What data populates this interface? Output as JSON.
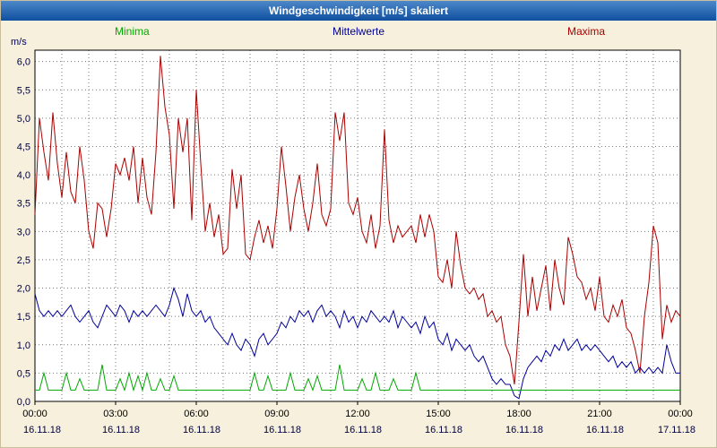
{
  "window": {
    "title": "Windgeschwindigkeit [m/s] skaliert"
  },
  "legend": [
    {
      "label": "Minima",
      "color": "#00a800"
    },
    {
      "label": "Mittelwerte",
      "color": "#000099"
    },
    {
      "label": "Maxima",
      "color": "#aa0000"
    }
  ],
  "axes": {
    "y_unit": "m/s"
  },
  "chart_data": {
    "type": "line",
    "title": "Windgeschwindigkeit [m/s] skaliert",
    "ylabel": "m/s",
    "ylim": [
      0,
      6.2
    ],
    "x_range_hours": [
      0,
      24
    ],
    "grid": "dotted, vertical every hour, horizontal every 0.5 m/s",
    "legend_position": "top",
    "yticks": [
      "0,0",
      "0,5",
      "1,0",
      "1,5",
      "2,0",
      "2,5",
      "3,0",
      "3,5",
      "4,0",
      "4,5",
      "5,0",
      "5,5",
      "6,0"
    ],
    "xticks": [
      {
        "time": "00:00",
        "date": "16.11.18"
      },
      {
        "time": "03:00",
        "date": "16.11.18"
      },
      {
        "time": "06:00",
        "date": "16.11.18"
      },
      {
        "time": "09:00",
        "date": "16.11.18"
      },
      {
        "time": "12:00",
        "date": "16.11.18"
      },
      {
        "time": "15:00",
        "date": "16.11.18"
      },
      {
        "time": "18:00",
        "date": "16.11.18"
      },
      {
        "time": "21:00",
        "date": "16.11.18"
      },
      {
        "time": "00:00",
        "date": "17.11.18"
      }
    ],
    "series": [
      {
        "name": "Maxima",
        "color": "#aa0000",
        "values": [
          3.3,
          5.0,
          4.4,
          3.9,
          5.1,
          4.2,
          3.6,
          4.4,
          3.7,
          3.5,
          4.5,
          3.9,
          3.0,
          2.7,
          3.5,
          3.4,
          2.9,
          3.4,
          4.2,
          4.0,
          4.3,
          3.9,
          4.5,
          3.5,
          4.3,
          3.6,
          3.3,
          4.4,
          6.1,
          5.2,
          4.7,
          3.4,
          5.0,
          4.4,
          5.0,
          3.2,
          5.5,
          4.2,
          3.0,
          3.5,
          2.9,
          3.3,
          2.6,
          2.7,
          4.1,
          3.4,
          4.0,
          2.6,
          2.5,
          2.9,
          3.2,
          2.8,
          3.1,
          2.7,
          3.4,
          4.5,
          3.8,
          3.0,
          3.6,
          4.0,
          3.4,
          3.0,
          3.5,
          4.2,
          3.3,
          3.1,
          3.4,
          5.1,
          4.6,
          5.1,
          3.5,
          3.3,
          3.6,
          3.0,
          2.8,
          3.3,
          2.7,
          3.1,
          4.8,
          3.2,
          2.8,
          3.1,
          2.9,
          3.0,
          3.1,
          2.8,
          3.3,
          2.9,
          3.3,
          3.0,
          2.2,
          2.1,
          2.5,
          2.0,
          3.0,
          2.4,
          2.0,
          1.9,
          2.0,
          1.8,
          1.9,
          1.5,
          1.6,
          1.4,
          1.5,
          1.0,
          0.8,
          0.3,
          1.4,
          2.6,
          1.5,
          2.2,
          1.6,
          2.0,
          2.4,
          1.6,
          2.5,
          2.0,
          1.7,
          2.9,
          2.6,
          2.2,
          2.1,
          1.8,
          2.0,
          1.6,
          2.2,
          1.5,
          1.4,
          1.7,
          1.5,
          1.8,
          1.3,
          1.2,
          0.9,
          0.5,
          1.5,
          2.1,
          3.1,
          2.8,
          1.1,
          1.7,
          1.4,
          1.6,
          1.5
        ]
      },
      {
        "name": "Mittelwerte",
        "color": "#000099",
        "values": [
          1.9,
          1.6,
          1.5,
          1.6,
          1.5,
          1.6,
          1.5,
          1.6,
          1.7,
          1.5,
          1.4,
          1.5,
          1.6,
          1.4,
          1.3,
          1.5,
          1.7,
          1.6,
          1.5,
          1.7,
          1.6,
          1.4,
          1.6,
          1.5,
          1.6,
          1.5,
          1.6,
          1.7,
          1.6,
          1.5,
          1.7,
          2.0,
          1.8,
          1.5,
          1.9,
          1.6,
          1.5,
          1.6,
          1.4,
          1.5,
          1.3,
          1.2,
          1.1,
          1.0,
          1.2,
          1.0,
          0.9,
          1.1,
          1.0,
          0.8,
          1.1,
          1.2,
          1.0,
          1.1,
          1.2,
          1.4,
          1.3,
          1.5,
          1.4,
          1.6,
          1.5,
          1.6,
          1.4,
          1.6,
          1.7,
          1.5,
          1.6,
          1.5,
          1.3,
          1.6,
          1.4,
          1.5,
          1.3,
          1.5,
          1.4,
          1.6,
          1.5,
          1.4,
          1.5,
          1.4,
          1.6,
          1.3,
          1.5,
          1.4,
          1.3,
          1.4,
          1.2,
          1.5,
          1.3,
          1.4,
          1.1,
          1.0,
          1.2,
          0.9,
          1.1,
          1.0,
          0.9,
          1.0,
          0.8,
          0.7,
          0.8,
          0.6,
          0.4,
          0.3,
          0.4,
          0.3,
          0.3,
          0.1,
          0.05,
          0.4,
          0.6,
          0.7,
          0.8,
          0.7,
          0.9,
          0.8,
          1.0,
          0.9,
          1.1,
          0.9,
          1.0,
          1.1,
          0.9,
          1.0,
          0.9,
          1.0,
          0.9,
          0.8,
          0.7,
          0.8,
          0.6,
          0.7,
          0.6,
          0.7,
          0.5,
          0.6,
          0.5,
          0.6,
          0.5,
          0.6,
          0.5,
          1.0,
          0.7,
          0.5,
          0.5
        ]
      },
      {
        "name": "Minima",
        "color": "#00a800",
        "values": [
          0.2,
          0.2,
          0.5,
          0.2,
          0.2,
          0.2,
          0.2,
          0.5,
          0.2,
          0.2,
          0.4,
          0.2,
          0.2,
          0.2,
          0.2,
          0.65,
          0.2,
          0.2,
          0.2,
          0.4,
          0.2,
          0.5,
          0.2,
          0.45,
          0.2,
          0.5,
          0.2,
          0.2,
          0.4,
          0.2,
          0.2,
          0.45,
          0.2,
          0.2,
          0.2,
          0.2,
          0.2,
          0.2,
          0.2,
          0.2,
          0.2,
          0.2,
          0.2,
          0.2,
          0.2,
          0.2,
          0.2,
          0.2,
          0.2,
          0.5,
          0.2,
          0.2,
          0.45,
          0.2,
          0.2,
          0.2,
          0.2,
          0.5,
          0.2,
          0.2,
          0.2,
          0.4,
          0.2,
          0.45,
          0.2,
          0.2,
          0.2,
          0.2,
          0.65,
          0.2,
          0.2,
          0.2,
          0.2,
          0.4,
          0.2,
          0.2,
          0.5,
          0.2,
          0.2,
          0.2,
          0.4,
          0.2,
          0.2,
          0.2,
          0.2,
          0.5,
          0.2,
          0.2,
          0.2,
          0.2,
          0.2,
          0.2,
          0.2,
          0.2,
          0.2,
          0.2,
          0.2,
          0.2,
          0.2,
          0.2,
          0.2,
          0.2,
          0.2,
          0.2,
          0.2,
          0.2,
          0.2,
          0.2,
          0.2,
          0.2,
          0.2,
          0.2,
          0.2,
          0.2,
          0.2,
          0.2,
          0.2,
          0.2,
          0.2,
          0.2,
          0.2,
          0.2,
          0.2,
          0.2,
          0.2,
          0.2,
          0.2,
          0.2,
          0.2,
          0.2,
          0.2,
          0.2,
          0.2,
          0.2,
          0.2,
          0.2,
          0.2,
          0.2,
          0.2,
          0.2,
          0.2,
          0.2,
          0.2,
          0.2,
          0.2
        ]
      }
    ]
  }
}
